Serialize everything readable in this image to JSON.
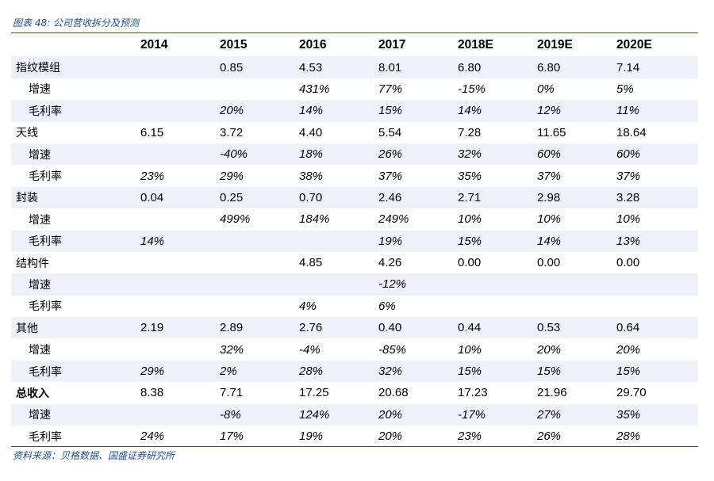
{
  "caption": "图表 48:  公司营收拆分及预测",
  "source": "资料来源：贝格数据、国盛证券研究所",
  "columns": [
    "",
    "2014",
    "2015",
    "2016",
    "2017",
    "2018E",
    "2019E",
    "2020E"
  ],
  "rows": [
    {
      "label": "指纹模组",
      "type": "main",
      "values": [
        "",
        "0.85",
        "4.53",
        "8.01",
        "6.80",
        "6.80",
        "7.14"
      ]
    },
    {
      "label": "增速",
      "type": "sub",
      "values": [
        "",
        "",
        "431%",
        "77%",
        "-15%",
        "0%",
        "5%"
      ]
    },
    {
      "label": "毛利率",
      "type": "sub",
      "values": [
        "",
        "20%",
        "14%",
        "15%",
        "14%",
        "12%",
        "11%"
      ]
    },
    {
      "label": "天线",
      "type": "main",
      "values": [
        "6.15",
        "3.72",
        "4.40",
        "5.54",
        "7.28",
        "11.65",
        "18.64"
      ]
    },
    {
      "label": "增速",
      "type": "sub",
      "values": [
        "",
        "-40%",
        "18%",
        "26%",
        "32%",
        "60%",
        "60%"
      ]
    },
    {
      "label": "毛利率",
      "type": "sub",
      "values": [
        "23%",
        "29%",
        "38%",
        "37%",
        "35%",
        "37%",
        "37%"
      ]
    },
    {
      "label": "封装",
      "type": "main",
      "values": [
        "0.04",
        "0.25",
        "0.70",
        "2.46",
        "2.71",
        "2.98",
        "3.28"
      ]
    },
    {
      "label": "增速",
      "type": "sub",
      "values": [
        "",
        "499%",
        "184%",
        "249%",
        "10%",
        "10%",
        "10%"
      ]
    },
    {
      "label": "毛利率",
      "type": "sub",
      "values": [
        "14%",
        "",
        "",
        "19%",
        "15%",
        "14%",
        "13%"
      ]
    },
    {
      "label": "结构件",
      "type": "main",
      "values": [
        "",
        "",
        "4.85",
        "4.26",
        "0.00",
        "0.00",
        "0.00"
      ]
    },
    {
      "label": "增速",
      "type": "sub",
      "values": [
        "",
        "",
        "",
        "-12%",
        "",
        "",
        ""
      ]
    },
    {
      "label": "毛利率",
      "type": "sub",
      "values": [
        "",
        "",
        "4%",
        "6%",
        "",
        "",
        ""
      ]
    },
    {
      "label": "其他",
      "type": "main",
      "values": [
        "2.19",
        "2.89",
        "2.76",
        "0.40",
        "0.44",
        "0.53",
        "0.64"
      ]
    },
    {
      "label": "增速",
      "type": "sub",
      "values": [
        "",
        "32%",
        "-4%",
        "-85%",
        "10%",
        "20%",
        "20%"
      ]
    },
    {
      "label": "毛利率",
      "type": "sub",
      "values": [
        "29%",
        "2%",
        "28%",
        "32%",
        "15%",
        "15%",
        "15%"
      ]
    },
    {
      "label": "总收入",
      "type": "total",
      "values": [
        "8.38",
        "7.71",
        "17.25",
        "20.68",
        "17.23",
        "21.96",
        "29.70"
      ]
    },
    {
      "label": "增速",
      "type": "sub",
      "values": [
        "",
        "-8%",
        "124%",
        "20%",
        "-17%",
        "27%",
        "35%"
      ]
    },
    {
      "label": "毛利率",
      "type": "sub",
      "values": [
        "24%",
        "17%",
        "19%",
        "20%",
        "23%",
        "26%",
        "28%"
      ]
    }
  ]
}
